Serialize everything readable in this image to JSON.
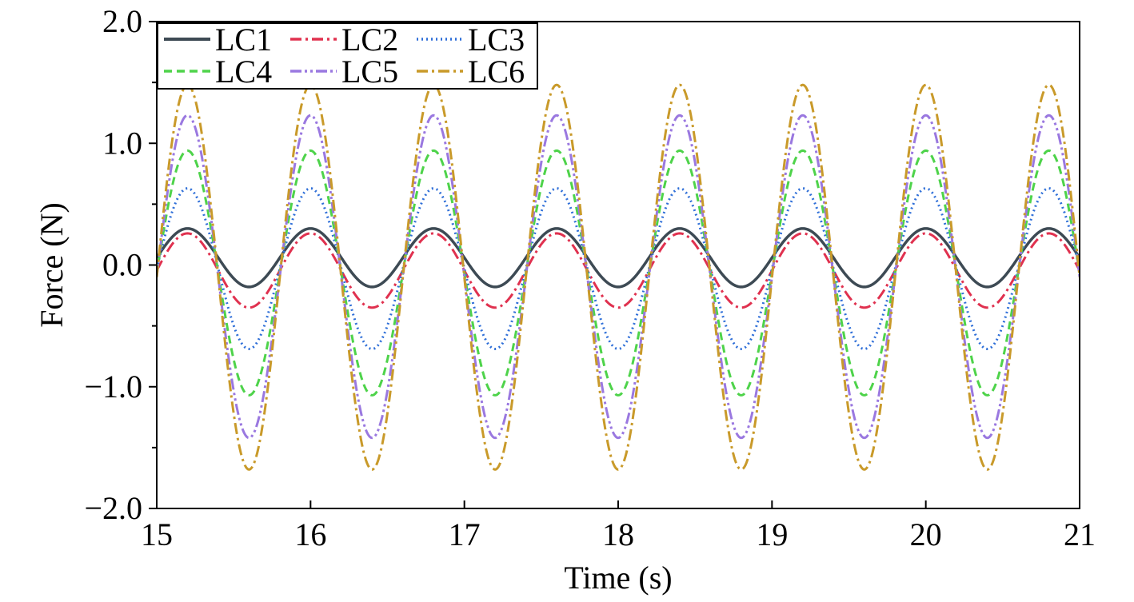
{
  "chart_data": {
    "type": "line",
    "xlabel": "Time (s)",
    "ylabel": "Force (N)",
    "xlim": [
      15,
      21
    ],
    "ylim": [
      -2.0,
      2.0
    ],
    "x_ticks": [
      15,
      16,
      17,
      18,
      19,
      20,
      21
    ],
    "x_tick_labels": [
      "15",
      "16",
      "17",
      "18",
      "19",
      "20",
      "21"
    ],
    "y_ticks": [
      2.0,
      1.0,
      0.0,
      -1.0,
      -2.0
    ],
    "y_tick_labels": [
      "2.0",
      "1.0",
      "0.0",
      "−1.0",
      "−2.0"
    ],
    "y_minor_ticks": [
      1.5,
      0.5,
      -0.5,
      -1.5
    ],
    "grid": false,
    "legend_position": "top-left",
    "legend_columns": 3,
    "period_s": 0.8,
    "phase_s": 15.2,
    "series": [
      {
        "name": "LC1",
        "color": "#3d4a54",
        "dash": "solid",
        "max": 0.3,
        "min": -0.18
      },
      {
        "name": "LC2",
        "color": "#e0314f",
        "dash": "dashdot",
        "max": 0.26,
        "min": -0.35
      },
      {
        "name": "LC3",
        "color": "#2f6fd8",
        "dash": "dotted",
        "max": 0.63,
        "min": -0.69
      },
      {
        "name": "LC4",
        "color": "#4ed34a",
        "dash": "dashed",
        "max": 0.94,
        "min": -1.07
      },
      {
        "name": "LC5",
        "color": "#9a78e0",
        "dash": "dashdotdot",
        "max": 1.23,
        "min": -1.42
      },
      {
        "name": "LC6",
        "color": "#c99a2a",
        "dash": "dashdot",
        "max": 1.48,
        "min": -1.68
      }
    ]
  }
}
